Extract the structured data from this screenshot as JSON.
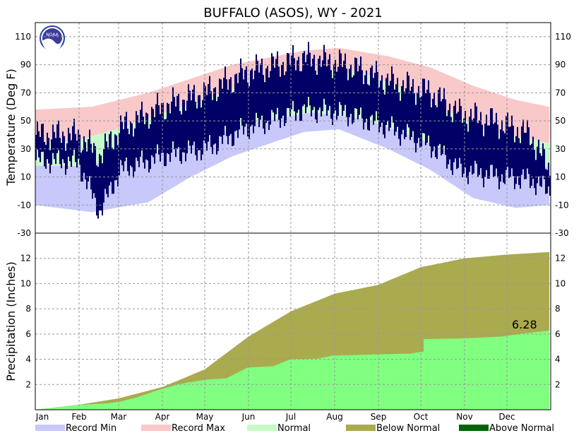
{
  "chart_data": {
    "type": "area",
    "title": "BUFFALO (ASOS), WY - 2021",
    "months": [
      "Jan",
      "Feb",
      "Mar",
      "Apr",
      "May",
      "Jun",
      "Jul",
      "Aug",
      "Sep",
      "Oct",
      "Nov",
      "Dec"
    ],
    "month_start_days": [
      0,
      31,
      59,
      90,
      120,
      151,
      181,
      212,
      243,
      273,
      304,
      334
    ],
    "grid": true,
    "legend_placement": "bottom",
    "temperature_panel": {
      "ylabel": "Temperature (Deg F)",
      "ylim": [
        -30,
        120
      ],
      "yticks": [
        -30,
        -10,
        10,
        30,
        50,
        70,
        90,
        110
      ],
      "normal_low_anchors": {
        "day": [
          0,
          30,
          60,
          90,
          120,
          150,
          196,
          230,
          260,
          290,
          320,
          364
        ],
        "value": [
          18,
          18,
          22,
          28,
          38,
          48,
          56,
          52,
          42,
          30,
          20,
          17
        ]
      },
      "normal_high_anchors": {
        "day": [
          0,
          30,
          60,
          90,
          120,
          150,
          196,
          230,
          260,
          290,
          320,
          364
        ],
        "value": [
          34,
          36,
          45,
          55,
          65,
          76,
          86,
          85,
          73,
          58,
          43,
          34
        ]
      },
      "record_min_anchors": {
        "day": [
          0,
          40,
          80,
          110,
          140,
          190,
          215,
          250,
          280,
          310,
          340,
          364
        ],
        "value": [
          -10,
          -15,
          -8,
          10,
          25,
          42,
          44,
          30,
          15,
          -5,
          -12,
          -10
        ]
      },
      "record_max_anchors": {
        "day": [
          0,
          40,
          80,
          110,
          140,
          190,
          215,
          250,
          280,
          310,
          340,
          364
        ],
        "value": [
          58,
          60,
          70,
          80,
          90,
          100,
          102,
          96,
          88,
          75,
          65,
          60
        ]
      },
      "observed_low_anchors": {
        "day": [
          0,
          30,
          45,
          60,
          90,
          120,
          150,
          190,
          220,
          250,
          280,
          300,
          330,
          350,
          364
        ],
        "value": [
          22,
          20,
          -15,
          15,
          25,
          30,
          45,
          58,
          55,
          45,
          32,
          15,
          10,
          8,
          0
        ]
      },
      "observed_high_anchors": {
        "day": [
          0,
          30,
          45,
          60,
          90,
          120,
          150,
          190,
          220,
          250,
          280,
          300,
          330,
          350,
          364
        ],
        "value": [
          40,
          40,
          25,
          45,
          60,
          70,
          85,
          95,
          90,
          78,
          70,
          55,
          48,
          40,
          15
        ]
      }
    },
    "precipitation_panel": {
      "ylabel": "Precipitation (Inches)",
      "ylim": [
        0,
        14
      ],
      "yticks": [
        2,
        4,
        6,
        8,
        10,
        12
      ],
      "normal_cumulative": {
        "day": [
          0,
          31,
          59,
          90,
          120,
          151,
          181,
          212,
          243,
          273,
          304,
          334,
          364
        ],
        "value": [
          0,
          0.4,
          0.9,
          1.8,
          3.2,
          5.8,
          7.8,
          9.2,
          9.9,
          11.3,
          12.0,
          12.3,
          12.5
        ]
      },
      "observed_cumulative": {
        "day": [
          0,
          32,
          50,
          60,
          72,
          85,
          100,
          110,
          122,
          135,
          150,
          168,
          180,
          200,
          210,
          230,
          245,
          265,
          274,
          275,
          300,
          320,
          330,
          345,
          364
        ],
        "value": [
          0,
          0.4,
          0.5,
          0.65,
          1.0,
          1.5,
          2.0,
          2.2,
          2.4,
          2.5,
          3.35,
          3.45,
          4.0,
          4.05,
          4.3,
          4.35,
          4.4,
          4.45,
          4.6,
          5.6,
          5.65,
          5.75,
          5.8,
          6.05,
          6.28
        ]
      },
      "annotation": "6.28"
    },
    "legend": [
      {
        "label": "Record Min",
        "color": "#c8c8fa"
      },
      {
        "label": "Record Max",
        "color": "#f9c8c8"
      },
      {
        "label": "Normal",
        "color": "#c8fac8"
      },
      {
        "label": "Below Normal",
        "color": "#aaaa4f"
      },
      {
        "label": "Above Normal",
        "color": "#006400"
      }
    ],
    "colors": {
      "record_min": "#c8c8fa",
      "record_max": "#f9c8c8",
      "normal": "#c8fac8",
      "observed": "#000066",
      "below_normal": "#aaaa4f",
      "above_normal": "#006400",
      "observed_precip": "#80ff80"
    }
  }
}
